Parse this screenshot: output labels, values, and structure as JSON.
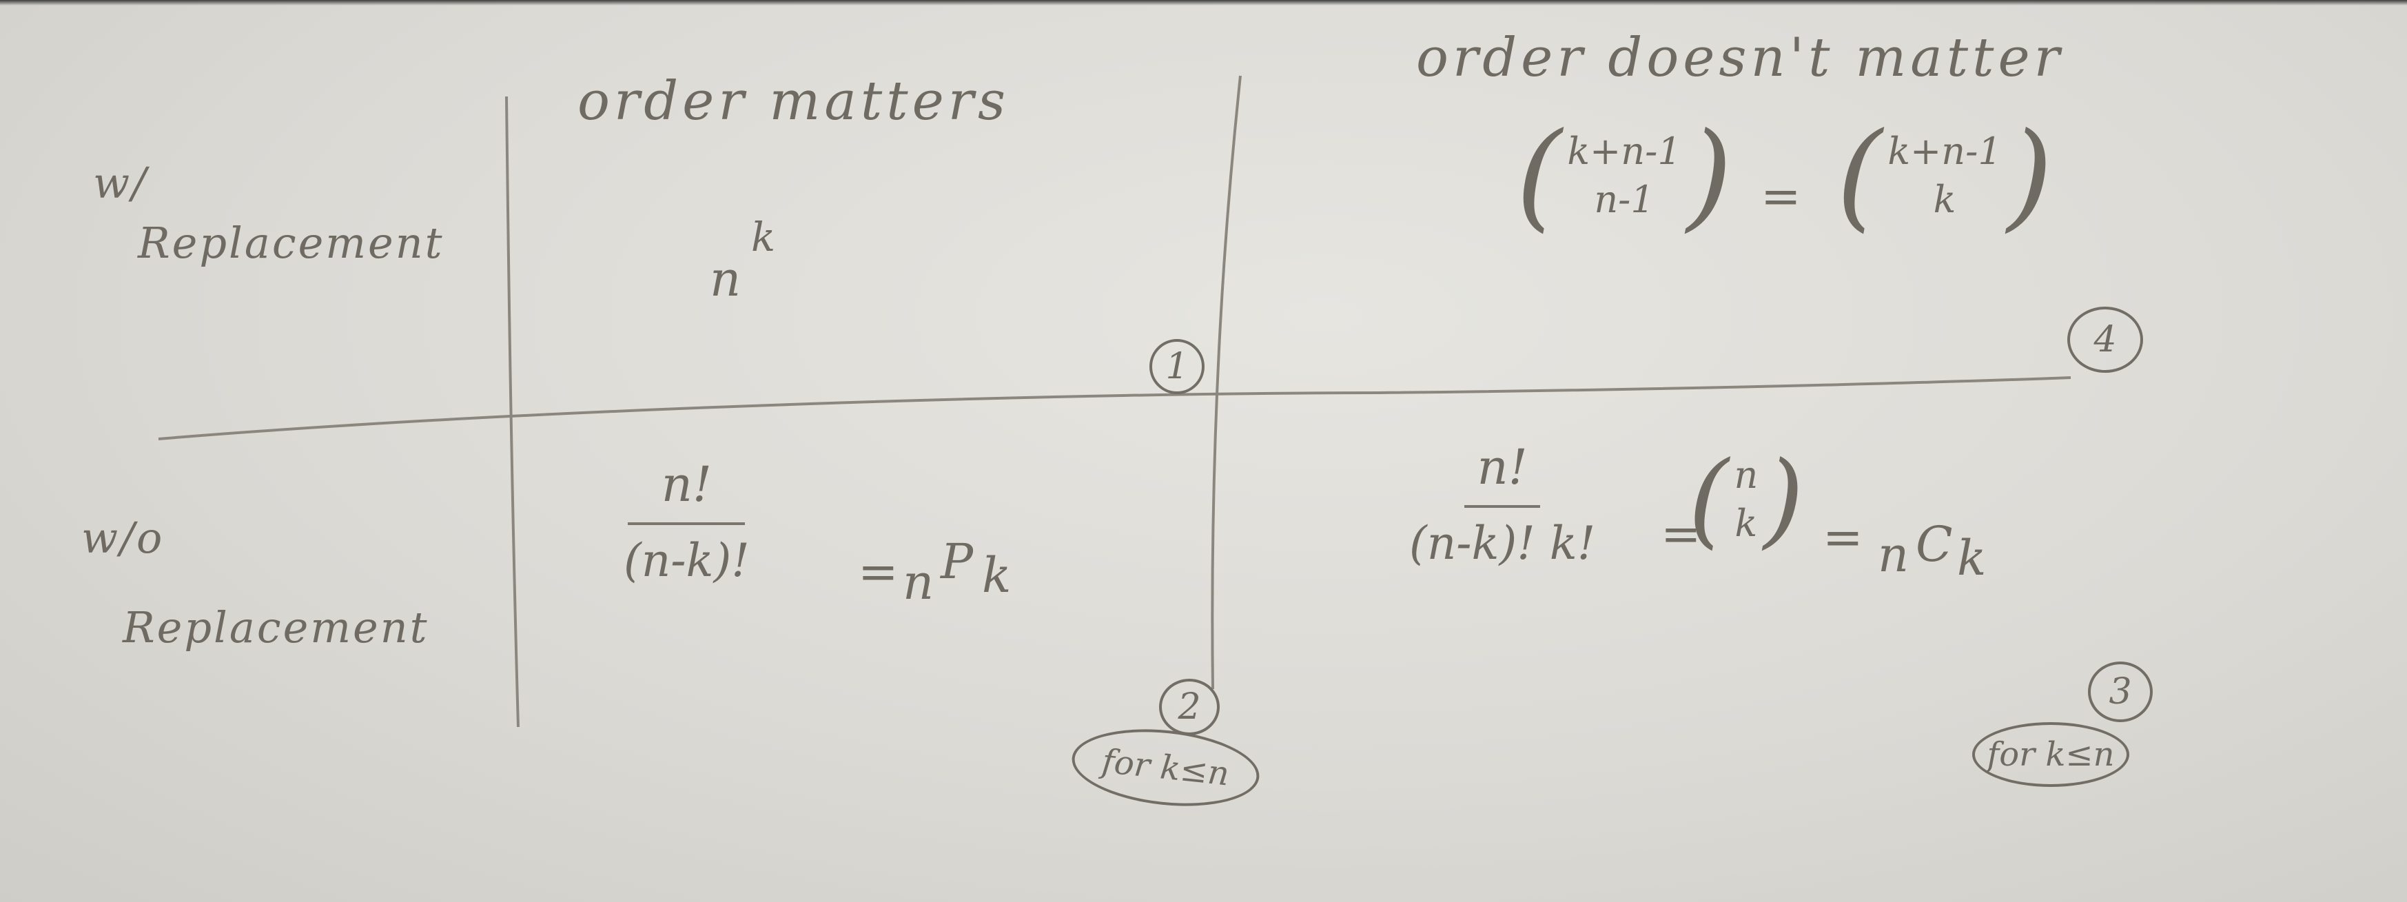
{
  "header": {
    "order_matters": "order matters",
    "order_doesnt_matter": "order doesn't matter"
  },
  "rows": {
    "with_replacement": [
      "w/",
      "Replacement"
    ],
    "without_replacement": [
      "w/o",
      "Replacement"
    ]
  },
  "cells": {
    "cell1": {
      "base": "n",
      "exponent": "k",
      "number": "1"
    },
    "cell2": {
      "numerator": "n!",
      "denominator": "(n-k)!",
      "equals": "=",
      "perm_n": "n",
      "perm_P": "P",
      "perm_k": "k",
      "number": "2",
      "condition": "for k≤n"
    },
    "cell3": {
      "numerator": "n!",
      "denominator": "(n-k)! k!",
      "equals1": "=",
      "binom_top": "n",
      "binom_bottom": "k",
      "equals2": "=",
      "comb_n": "n",
      "comb_C": "C",
      "comb_k": "k",
      "number": "3",
      "condition": "for k≤n"
    },
    "cell4": {
      "binom1_top": "k+n-1",
      "binom1_bottom": "n-1",
      "equals": "=",
      "binom2_top": "k+n-1",
      "binom2_bottom": "k",
      "number": "4"
    }
  }
}
